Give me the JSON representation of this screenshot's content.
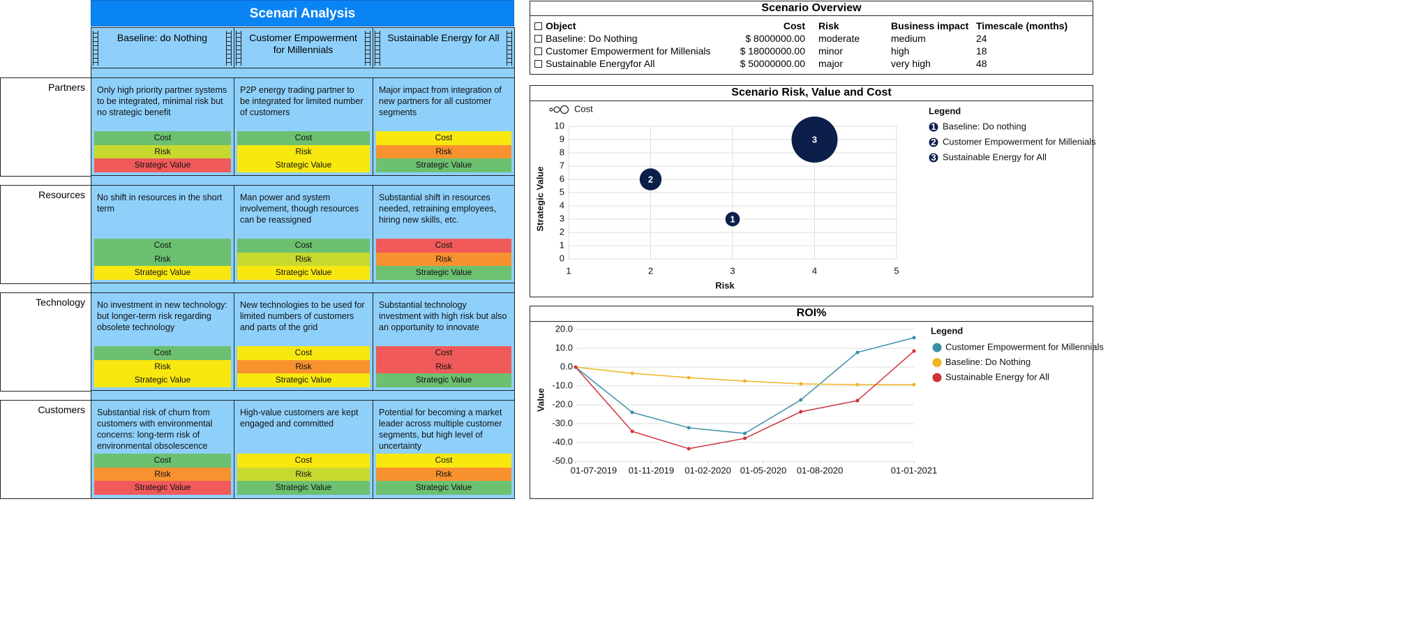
{
  "matrix": {
    "title": "Scenari Analysis",
    "columns": [
      "Baseline: do Nothing",
      "Customer Empowerment for Millennials",
      "Sustainable Energy for All"
    ],
    "rating_labels": [
      "Cost",
      "Risk",
      "Strategic Value"
    ],
    "rows": [
      {
        "label": "Partners",
        "cells": [
          {
            "text": "Only high priority partner systems to be integrated, minimal risk but no strategic benefit",
            "colors": [
              "#6cc070",
              "#c7d92e",
              "#f05a5a"
            ]
          },
          {
            "text": "P2P energy trading partner to be integrated for limited number of customers",
            "colors": [
              "#6cc070",
              "#f9e80f",
              "#f9e80f"
            ]
          },
          {
            "text": "Major impact from integration of new partners for all customer segments",
            "colors": [
              "#f9e80f",
              "#f8922f",
              "#6cc070"
            ]
          }
        ]
      },
      {
        "label": "Resources",
        "cells": [
          {
            "text": "No shift in resources in the short term",
            "colors": [
              "#6cc070",
              "#6cc070",
              "#f9e80f"
            ]
          },
          {
            "text": "Man power and system involvement, though resources can be reassigned",
            "colors": [
              "#6cc070",
              "#c7d92e",
              "#f9e80f"
            ]
          },
          {
            "text": "Substantial shift in resources needed, retraining employees, hiring new skills, etc.",
            "colors": [
              "#f05a5a",
              "#f8922f",
              "#6cc070"
            ]
          }
        ]
      },
      {
        "label": "Technology",
        "cells": [
          {
            "text": "No investment in new technology: but longer-term risk regarding obsolete technology",
            "colors": [
              "#6cc070",
              "#f9e80f",
              "#f9e80f"
            ]
          },
          {
            "text": "New technologies to be used for limited numbers of customers and parts of the grid",
            "colors": [
              "#f9e80f",
              "#f8922f",
              "#f9e80f"
            ]
          },
          {
            "text": "Substantial technology investment with high risk but also an opportunity to innovate",
            "colors": [
              "#f05a5a",
              "#f05a5a",
              "#6cc070"
            ]
          }
        ]
      },
      {
        "label": "Customers",
        "cells": [
          {
            "text": "Substantial risk of churn from customers with environmental concerns: long-term risk of environmental obsolescence",
            "colors": [
              "#6cc070",
              "#f8922f",
              "#f05a5a"
            ]
          },
          {
            "text": "High-value customers are kept engaged and committed",
            "colors": [
              "#f9e80f",
              "#c7d92e",
              "#6cc070"
            ]
          },
          {
            "text": "Potential for becoming a market leader across multiple customer segments, but high level of uncertainty",
            "colors": [
              "#f9e80f",
              "#f8922f",
              "#6cc070"
            ]
          }
        ]
      }
    ]
  },
  "overview": {
    "title": "Scenario Overview",
    "headers": [
      "Object",
      "Cost",
      "Risk",
      "Business impact",
      "Timescale (months)"
    ],
    "rows": [
      [
        "Baseline: Do Nothing",
        "$ 8000000.00",
        "moderate",
        "medium",
        "24"
      ],
      [
        "Customer Empowerment for Millenials",
        "$ 18000000.00",
        "minor",
        "high",
        "18"
      ],
      [
        "Sustainable Energyfor All",
        "$ 50000000.00",
        "major",
        "very high",
        "48"
      ]
    ]
  },
  "chart_data": [
    {
      "type": "bubble",
      "title": "Scenario Risk, Value and Cost",
      "size_label": "Cost",
      "legend_title": "Legend",
      "xlabel": "Risk",
      "ylabel": "Strategic Value",
      "color": "#0c1e4a",
      "grid": true,
      "xlim": [
        1,
        5
      ],
      "xticks": [
        1,
        2,
        3,
        4,
        5
      ],
      "ylim": [
        0,
        10
      ],
      "yticks": [
        0,
        1,
        2,
        3,
        4,
        5,
        6,
        7,
        8,
        9,
        10
      ],
      "series": [
        {
          "name": "Baseline: Do nothing",
          "label": "1",
          "x": [
            3
          ],
          "values": [
            3
          ],
          "sizes": [
            8000000
          ]
        },
        {
          "name": "Customer Empowerment for Millenials",
          "label": "2",
          "x": [
            2
          ],
          "values": [
            6
          ],
          "sizes": [
            18000000
          ]
        },
        {
          "name": "Sustainable Energy for All",
          "label": "3",
          "x": [
            4
          ],
          "values": [
            9
          ],
          "sizes": [
            50000000
          ]
        }
      ]
    },
    {
      "type": "line",
      "title": "ROI%",
      "ylabel": "Value",
      "legend_title": "Legend",
      "grid": true,
      "x": [
        "2019-07-01",
        "2019-10-01",
        "2020-01-01",
        "2020-04-01",
        "2020-07-01",
        "2020-10-01",
        "2021-01-01"
      ],
      "xlim": [
        "2019-07-01",
        "2021-01-01"
      ],
      "xticks": [
        {
          "value": "2019-07-01",
          "label": "01-07-2019"
        },
        {
          "value": "2019-11-01",
          "label": "01-11-2019"
        },
        {
          "value": "2020-02-01",
          "label": "01-02-2020"
        },
        {
          "value": "2020-05-01",
          "label": "01-05-2020"
        },
        {
          "value": "2020-08-01",
          "label": "01-08-2020"
        },
        {
          "value": "2021-01-01",
          "label": "01-01-2021"
        }
      ],
      "ylim": [
        -50,
        20
      ],
      "yticks": [
        {
          "value": 20,
          "label": "20.0"
        },
        {
          "value": 10,
          "label": "10.0"
        },
        {
          "value": 0,
          "label": "0.0"
        },
        {
          "value": -10,
          "label": "-10.0"
        },
        {
          "value": -20,
          "label": "-20.0"
        },
        {
          "value": -30,
          "label": "-30.0"
        },
        {
          "value": -40,
          "label": "-40.0"
        },
        {
          "value": -50,
          "label": "-50.0"
        }
      ],
      "series": [
        {
          "name": "Customer Empowerment for Millennials",
          "color": "#3a8fa8",
          "values": [
            0,
            -24,
            -32.2,
            -35.2,
            -17.4,
            7.8,
            15.6
          ]
        },
        {
          "name": "Baseline: Do Nothing",
          "color": "#f0b323",
          "values": [
            0,
            -3.3,
            -5.6,
            -7.4,
            -8.9,
            -9.3,
            -9.3
          ]
        },
        {
          "name": "Sustainable Energy for All",
          "color": "#d0323a",
          "values": [
            0,
            -34.1,
            -43.3,
            -37.8,
            -23.7,
            -17.8,
            8.5
          ]
        }
      ]
    }
  ]
}
